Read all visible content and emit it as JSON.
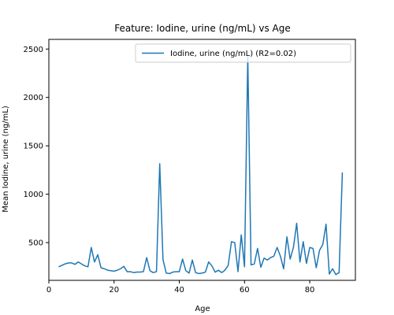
{
  "chart_data": {
    "type": "line",
    "title": "Feature: Iodine, urine (ng/mL) vs Age",
    "xlabel": "Age",
    "ylabel": "Mean Iodine, urine (ng/mL)",
    "xlim": [
      0,
      94
    ],
    "ylim": [
      110,
      2600
    ],
    "xticks": [
      0,
      20,
      40,
      60,
      80
    ],
    "yticks": [
      500,
      1000,
      1500,
      2000,
      2500
    ],
    "grid": false,
    "legend_position": "top-right",
    "colors": {
      "line": "#1f77b4"
    },
    "series": [
      {
        "name": "Iodine, urine (ng/mL) (R2=0.02)",
        "x": [
          3,
          4,
          5,
          6,
          7,
          8,
          9,
          10,
          11,
          12,
          13,
          14,
          15,
          16,
          17,
          18,
          19,
          20,
          21,
          22,
          23,
          24,
          25,
          26,
          27,
          28,
          29,
          30,
          31,
          32,
          33,
          34,
          35,
          36,
          37,
          38,
          39,
          40,
          41,
          42,
          43,
          44,
          45,
          46,
          47,
          48,
          49,
          50,
          51,
          52,
          53,
          54,
          55,
          56,
          57,
          58,
          59,
          60,
          61,
          62,
          63,
          64,
          65,
          66,
          67,
          68,
          69,
          70,
          71,
          72,
          73,
          74,
          75,
          76,
          77,
          78,
          79,
          80,
          81,
          82,
          83,
          84,
          85,
          86,
          87,
          88,
          89,
          90
        ],
        "y": [
          250,
          265,
          280,
          290,
          290,
          275,
          300,
          280,
          260,
          250,
          450,
          300,
          375,
          240,
          230,
          215,
          210,
          205,
          215,
          230,
          255,
          200,
          200,
          190,
          195,
          195,
          200,
          345,
          210,
          190,
          200,
          1315,
          325,
          185,
          180,
          195,
          200,
          200,
          330,
          210,
          185,
          320,
          190,
          180,
          185,
          195,
          300,
          260,
          195,
          215,
          190,
          215,
          265,
          510,
          500,
          200,
          580,
          250,
          2430,
          270,
          280,
          440,
          245,
          340,
          320,
          345,
          360,
          450,
          360,
          230,
          560,
          330,
          450,
          700,
          300,
          510,
          285,
          450,
          440,
          240,
          420,
          480,
          690,
          175,
          230,
          170,
          190,
          1225
        ]
      }
    ]
  }
}
